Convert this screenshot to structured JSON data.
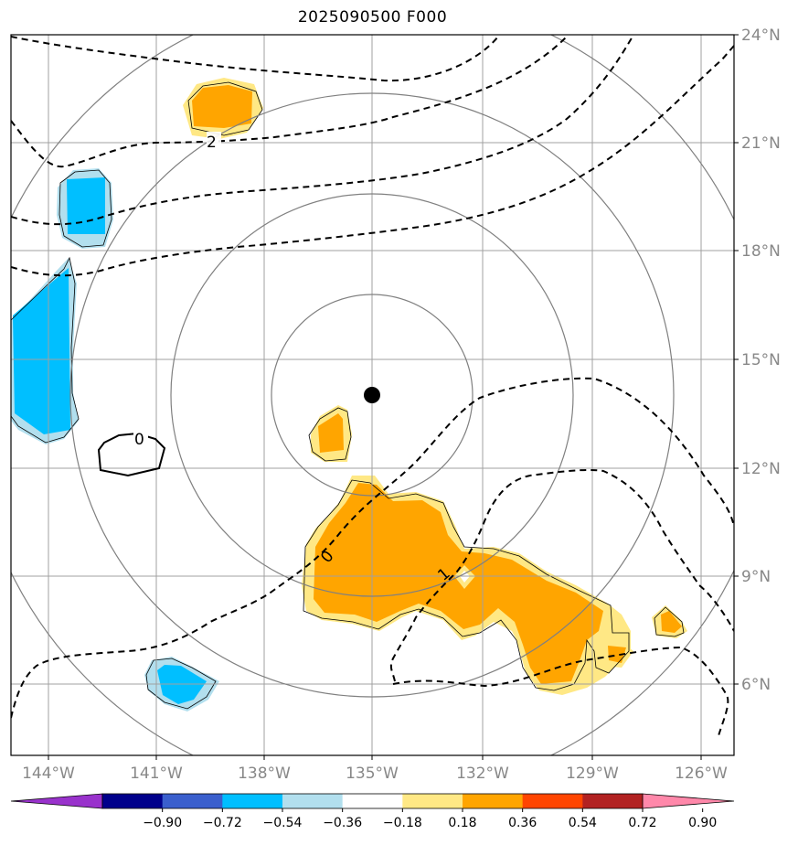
{
  "title": "2025090500 F000",
  "map": {
    "lon_labels": [
      "144°W",
      "141°W",
      "138°W",
      "135°W",
      "132°W",
      "129°W",
      "126°W"
    ],
    "lat_labels": [
      "24°N",
      "21°N",
      "18°N",
      "15°N",
      "12°N",
      "9°N",
      "6°N"
    ],
    "center_marker": {
      "lon": -135,
      "lat": 14
    },
    "contour_labels": [
      "2",
      "0",
      "0",
      "1"
    ],
    "range_rings": 4
  },
  "colorbar": {
    "ticks": [
      "−0.90",
      "−0.72",
      "−0.54",
      "−0.36",
      "−0.18",
      "0.18",
      "0.36",
      "0.54",
      "0.72",
      "0.90"
    ],
    "colors": [
      "#9932cc",
      "#00008b",
      "#3a5fcd",
      "#00bfff",
      "#b2dfee",
      "#ffffff",
      "#ffe885",
      "#ffa500",
      "#ff4500",
      "#b22222",
      "#ff88aa"
    ]
  }
}
